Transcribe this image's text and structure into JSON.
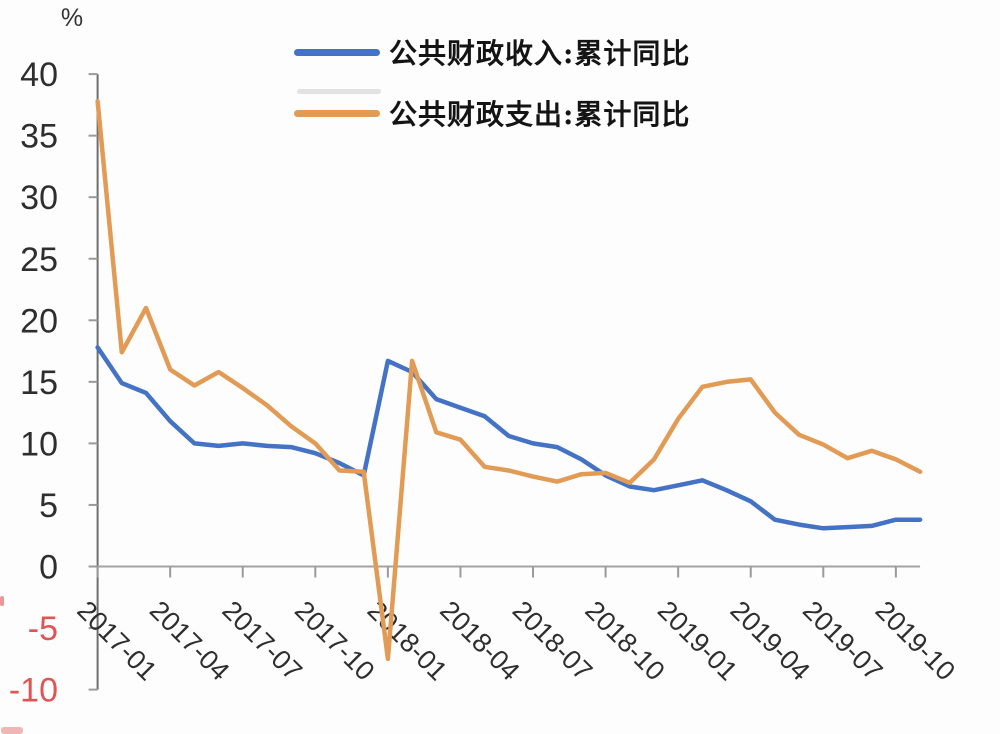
{
  "chart": {
    "unit_label": "%",
    "legend": [
      {
        "label": "公共财政收入:累计同比",
        "color": "#4472C4"
      },
      {
        "label": "公共财政支出:累计同比",
        "color": "#E29B55"
      }
    ]
  },
  "chart_data": {
    "type": "line",
    "title": "",
    "xlabel": "",
    "ylabel": "%",
    "ylim": [
      -10,
      40
    ],
    "grid": false,
    "legend_position": "top-center",
    "x_label_rotation": 45,
    "y_ticks": [
      40,
      35,
      30,
      25,
      20,
      15,
      10,
      5,
      0,
      -5,
      -10
    ],
    "negative_tick_color": "#DE5555",
    "tick_label_color": "#2e2e2e",
    "axis_color": "#6e6e6e",
    "x": [
      "2017-01",
      "2017-02",
      "2017-03",
      "2017-04",
      "2017-05",
      "2017-06",
      "2017-07",
      "2017-08",
      "2017-09",
      "2017-10",
      "2017-11",
      "2017-12",
      "2018-01",
      "2018-02",
      "2018-03",
      "2018-04",
      "2018-05",
      "2018-06",
      "2018-07",
      "2018-08",
      "2018-09",
      "2018-10",
      "2018-11",
      "2018-12",
      "2019-01",
      "2019-02",
      "2019-03",
      "2019-04",
      "2019-05",
      "2019-06",
      "2019-07",
      "2019-08",
      "2019-09",
      "2019-10",
      "2019-11"
    ],
    "x_tick_labels": [
      "2017-01",
      "2017-04",
      "2017-07",
      "2017-10",
      "2018-01",
      "2018-04",
      "2018-07",
      "2018-10",
      "2019-01",
      "2019-04",
      "2019-07",
      "2019-10"
    ],
    "x_tick_every_n_months": 3,
    "series": [
      {
        "name": "公共财政收入:累计同比",
        "color": "#4472C4",
        "values": [
          17.8,
          14.9,
          14.1,
          11.8,
          10.0,
          9.8,
          10.0,
          9.8,
          9.7,
          9.2,
          8.4,
          7.4,
          16.7,
          15.8,
          13.6,
          12.9,
          12.2,
          10.6,
          10.0,
          9.7,
          8.7,
          7.4,
          6.5,
          6.2,
          6.6,
          7.0,
          6.2,
          5.3,
          3.8,
          3.4,
          3.1,
          3.2,
          3.3,
          3.8,
          3.8
        ]
      },
      {
        "name": "公共财政支出:累计同比",
        "color": "#E29B55",
        "values": [
          37.8,
          17.4,
          21.0,
          16.0,
          14.7,
          15.8,
          14.5,
          13.1,
          11.4,
          10.0,
          7.8,
          7.7,
          -7.5,
          16.7,
          10.9,
          10.3,
          8.1,
          7.8,
          7.3,
          6.9,
          7.5,
          7.6,
          6.8,
          8.7,
          12.0,
          14.6,
          15.0,
          15.2,
          12.5,
          10.7,
          9.9,
          8.8,
          9.4,
          8.7,
          7.7
        ]
      }
    ]
  }
}
